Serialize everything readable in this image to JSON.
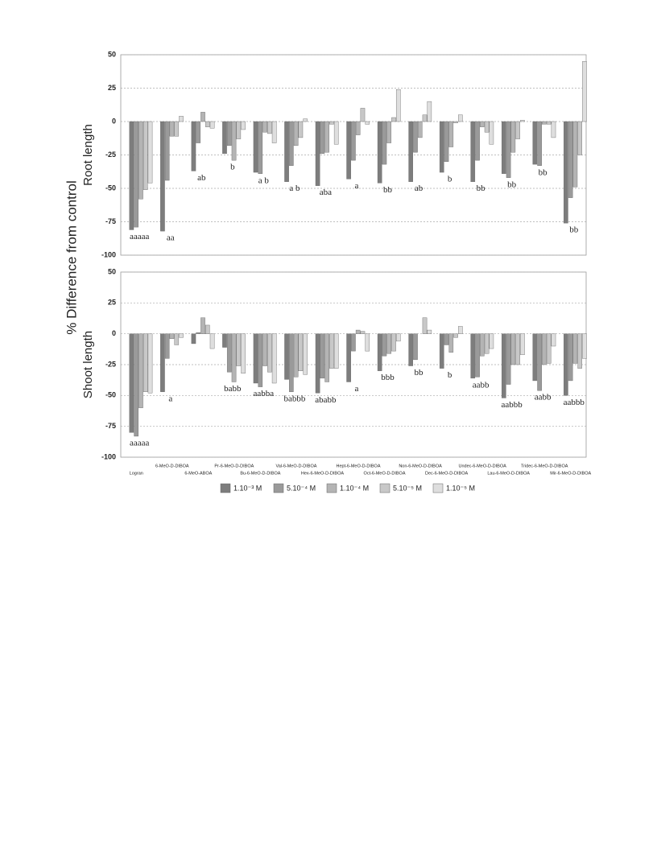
{
  "ylabel": "%  Difference from control",
  "chart_data": [
    {
      "type": "bar",
      "ylabel": "Root length",
      "ylim": [
        -100,
        50
      ],
      "yticks": [
        50,
        25,
        0,
        -25,
        -50,
        -75,
        -100
      ],
      "grid": true,
      "series": [
        {
          "name": "1.10⁻³ M",
          "color": "#7d7d7d",
          "values": [
            -81,
            -82,
            -37,
            -24,
            -38,
            -45,
            -48,
            -43,
            -46,
            -45,
            -38,
            -45,
            -39,
            -32,
            -76
          ]
        },
        {
          "name": "5.10⁻⁴ M",
          "color": "#9a9a9a",
          "values": [
            -79,
            -44,
            -16,
            -18,
            -39,
            -33,
            -24,
            -29,
            -32,
            -23,
            -30,
            -29,
            -42,
            -33,
            -57
          ]
        },
        {
          "name": "1.10⁻⁴ M",
          "color": "#b4b4b4",
          "values": [
            -58,
            -11,
            7,
            -29,
            -8,
            -18,
            -23,
            -10,
            -16,
            -12,
            -19,
            -4,
            -23,
            -2,
            -49
          ]
        },
        {
          "name": "5.10⁻⁵ M",
          "color": "#c8c8c8",
          "values": [
            -51,
            -11,
            -4,
            -13,
            -9,
            -12,
            -2,
            10,
            3,
            5,
            -1,
            -8,
            -13,
            -2,
            -25
          ]
        },
        {
          "name": "1.10⁻⁵ M",
          "color": "#dedede",
          "values": [
            -46,
            4,
            -5,
            -6,
            -16,
            2,
            -17,
            -2,
            24,
            15,
            5,
            -17,
            1,
            -12,
            45
          ]
        }
      ],
      "annotations": [
        "aaaaa",
        "aa",
        "ab",
        "b",
        "a b",
        "a b",
        "aba",
        "a",
        "bb",
        "ab",
        "b",
        "bb",
        "bb",
        "bb",
        "bb"
      ]
    },
    {
      "type": "bar",
      "ylabel": "Shoot length",
      "ylim": [
        -100,
        50
      ],
      "yticks": [
        50,
        25,
        0,
        -25,
        -50,
        -75,
        -100
      ],
      "grid": true,
      "categories": [
        "Logran",
        "6-MeO-D-DIBOA",
        "6-MeO-ABOA",
        "Pr-6-MeO-D-DIBOA",
        "Bu-6-MeO-D-DIBOA",
        "Val-6-MeO-D-DIBOA",
        "Hex-6-MeO-D-DIBOA",
        "Hept-6-MeO-D-DIBOA",
        "Oct-6-MeO-D-DIBOA",
        "Non-6-MeO-D-DIBOA",
        "Dec-6-MeO-D-DIBOA",
        "Undec-6-MeO-D-DIBOA",
        "Lau-6-MeO-D-DIBOA",
        "Tridec-6-MeO-D-DIBOA",
        "Mir-6-MeO-D-DIBOA"
      ],
      "series": [
        {
          "values": [
            -80,
            -47,
            -8,
            -11,
            -40,
            -37,
            -48,
            -39,
            -30,
            -26,
            -28,
            -36,
            -52,
            -38,
            -50
          ]
        },
        {
          "values": [
            -83,
            -20,
            1,
            -31,
            -43,
            -47,
            -36,
            -14,
            -18,
            -21,
            -9,
            -35,
            -41,
            -46,
            -38
          ]
        },
        {
          "values": [
            -60,
            -4,
            13,
            -39,
            -26,
            -35,
            -39,
            3,
            -16,
            0,
            -15,
            -18,
            -25,
            -25,
            -24
          ]
        },
        {
          "values": [
            -47,
            -9,
            7,
            -26,
            -31,
            -30,
            -28,
            2,
            -14,
            13,
            -3,
            -16,
            -25,
            -24,
            -28
          ]
        },
        {
          "values": [
            -48,
            -3,
            -12,
            -32,
            -40,
            -33,
            -28,
            -14,
            -6,
            3,
            6,
            -12,
            -17,
            -10,
            -20
          ]
        }
      ],
      "annotations": [
        "aaaaa",
        "a",
        null,
        "babb",
        "aabba",
        "babbb",
        "ababb",
        "a",
        "bbb",
        "bb",
        "b",
        "aabb",
        "aabbb",
        "aabb",
        "aabbb"
      ]
    }
  ]
}
